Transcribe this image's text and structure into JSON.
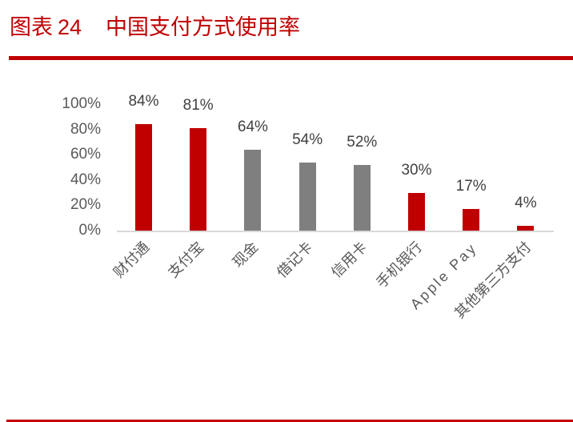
{
  "header": {
    "figure_prefix": "图表",
    "figure_number": "24",
    "title": "中国支付方式使用率"
  },
  "colors": {
    "accent_red": "#c00000",
    "bar_gray": "#7f7f7f",
    "axis_gray": "#d9d9d9",
    "text_gray": "#595959"
  },
  "chart_data": {
    "type": "bar",
    "title": "中国支付方式使用率",
    "xlabel": "",
    "ylabel": "",
    "ylim": [
      0,
      100
    ],
    "yticks": [
      "0%",
      "20%",
      "40%",
      "60%",
      "80%",
      "100%"
    ],
    "grid": false,
    "legend": null,
    "categories": [
      "财付通",
      "支付宝",
      "现金",
      "借记卡",
      "信用卡",
      "手机银行",
      "Apple Pay",
      "其他第三方支付"
    ],
    "values": [
      84,
      81,
      64,
      54,
      52,
      30,
      17,
      4
    ],
    "value_labels": [
      "84%",
      "81%",
      "64%",
      "54%",
      "52%",
      "30%",
      "17%",
      "4%"
    ],
    "bar_colors": [
      "#c00000",
      "#c00000",
      "#7f7f7f",
      "#7f7f7f",
      "#7f7f7f",
      "#c00000",
      "#c00000",
      "#c00000"
    ],
    "unit": "%"
  }
}
